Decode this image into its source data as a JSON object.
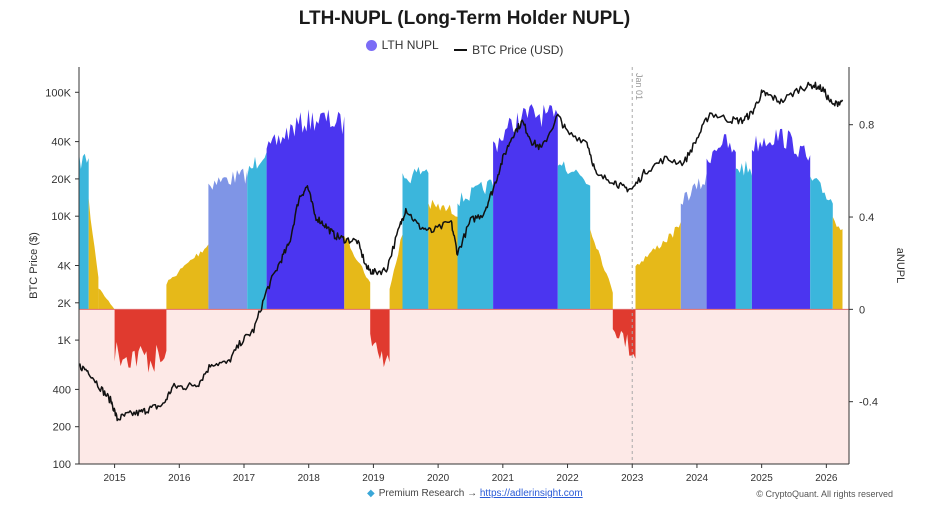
{
  "chart_data": {
    "type": "area",
    "title": "LTH-NUPL (Long-Term Holder NUPL)",
    "legend": [
      {
        "name": "LTH NUPL",
        "color": "#7b6cf6",
        "marker": "dot"
      },
      {
        "name": "BTC Price (USD)",
        "color": "#111111",
        "marker": "line"
      }
    ],
    "legend_placement": "top-center",
    "ylabel_left": "BTC Price ($)",
    "ylabel_right": "aNUPL",
    "left_axis_scale": "log",
    "left_ticks": [
      "100K",
      "40K",
      "20K",
      "10K",
      "4K",
      "2K",
      "1K",
      "400",
      "200",
      "100"
    ],
    "left_tick_values": [
      100000,
      40000,
      20000,
      10000,
      4000,
      2000,
      1000,
      400,
      200,
      100
    ],
    "ylim_left": [
      100,
      160000
    ],
    "right_ticks": [
      "0.8",
      "0.4",
      "0",
      "-0.4"
    ],
    "right_tick_values": [
      0.8,
      0.4,
      0,
      -0.4
    ],
    "ylim_right": [
      -0.67,
      1.05
    ],
    "x_ticks": [
      "2015",
      "2016",
      "2017",
      "2018",
      "2019",
      "2020",
      "2021",
      "2022",
      "2023",
      "2024",
      "2025",
      "2026"
    ],
    "x_tick_values": [
      2015,
      2016,
      2017,
      2018,
      2019,
      2020,
      2021,
      2022,
      2023,
      2024,
      2025,
      2026
    ],
    "xlim": [
      2014.45,
      2026.35
    ],
    "annotation": {
      "label": "Jan 01",
      "x": 2023.0
    },
    "zone_colors": {
      "capitulation": "#e03a2f",
      "hope_fear": "#e6b919",
      "optimism": "#3bb6dc",
      "belief": "#7f95e6",
      "euphoria": "#4b35f0"
    },
    "negative_zone_fill": "#fde9e7",
    "series": [
      {
        "name": "LTH NUPL",
        "segments": [
          {
            "zone": "optimism",
            "x": [
              2014.45,
              2014.6
            ],
            "y": [
              0.68,
              0.7
            ]
          },
          {
            "zone": "hope_fear",
            "x": [
              2014.6,
              2014.75
            ],
            "y": [
              0.5,
              0.15
            ]
          },
          {
            "zone": "hope_fear",
            "x": [
              2014.75,
              2015.0
            ],
            "y": [
              0.1,
              0.0
            ]
          },
          {
            "zone": "capitulation",
            "x": [
              2015.0,
              2015.8
            ],
            "y": [
              -0.25,
              -0.3
            ]
          },
          {
            "zone": "hope_fear",
            "x": [
              2015.8,
              2016.45
            ],
            "y": [
              0.12,
              0.3
            ]
          },
          {
            "zone": "belief",
            "x": [
              2016.45,
              2017.05
            ],
            "y": [
              0.58,
              0.62
            ]
          },
          {
            "zone": "optimism",
            "x": [
              2017.05,
              2017.35
            ],
            "y": [
              0.62,
              0.75
            ]
          },
          {
            "zone": "euphoria",
            "x": [
              2017.35,
              2018.55
            ],
            "y": [
              0.72,
              0.85
            ]
          },
          {
            "zone": "hope_fear",
            "x": [
              2018.55,
              2018.95
            ],
            "y": [
              0.35,
              0.12
            ]
          },
          {
            "zone": "capitulation",
            "x": [
              2018.95,
              2019.25
            ],
            "y": [
              -0.15,
              -0.35
            ]
          },
          {
            "zone": "hope_fear",
            "x": [
              2019.25,
              2019.45
            ],
            "y": [
              0.1,
              0.35
            ]
          },
          {
            "zone": "optimism",
            "x": [
              2019.45,
              2019.85
            ],
            "y": [
              0.6,
              0.65
            ]
          },
          {
            "zone": "hope_fear",
            "x": [
              2019.85,
              2020.3
            ],
            "y": [
              0.48,
              0.45
            ]
          },
          {
            "zone": "optimism",
            "x": [
              2020.3,
              2020.85
            ],
            "y": [
              0.5,
              0.58
            ]
          },
          {
            "zone": "euphoria",
            "x": [
              2020.85,
              2021.85
            ],
            "y": [
              0.75,
              0.87
            ]
          },
          {
            "zone": "optimism",
            "x": [
              2021.85,
              2022.35
            ],
            "y": [
              0.7,
              0.58
            ]
          },
          {
            "zone": "hope_fear",
            "x": [
              2022.35,
              2022.7
            ],
            "y": [
              0.38,
              0.08
            ]
          },
          {
            "zone": "capitulation",
            "x": [
              2022.7,
              2023.05
            ],
            "y": [
              -0.1,
              -0.25
            ]
          },
          {
            "zone": "hope_fear",
            "x": [
              2023.05,
              2023.75
            ],
            "y": [
              0.2,
              0.38
            ]
          },
          {
            "zone": "belief",
            "x": [
              2023.75,
              2024.15
            ],
            "y": [
              0.5,
              0.6
            ]
          },
          {
            "zone": "euphoria",
            "x": [
              2024.15,
              2024.6
            ],
            "y": [
              0.68,
              0.7
            ]
          },
          {
            "zone": "optimism",
            "x": [
              2024.6,
              2024.85
            ],
            "y": [
              0.66,
              0.64
            ]
          },
          {
            "zone": "euphoria",
            "x": [
              2024.85,
              2025.75
            ],
            "y": [
              0.75,
              0.68
            ]
          },
          {
            "zone": "optimism",
            "x": [
              2025.75,
              2026.1
            ],
            "y": [
              0.6,
              0.5
            ]
          },
          {
            "zone": "hope_fear",
            "x": [
              2026.1,
              2026.25
            ],
            "y": [
              0.42,
              0.38
            ]
          }
        ]
      },
      {
        "name": "BTC Price (USD)",
        "x": [
          2014.45,
          2014.6,
          2014.8,
          2014.95,
          2015.04,
          2015.2,
          2015.4,
          2015.55,
          2015.75,
          2015.9,
          2016.1,
          2016.3,
          2016.5,
          2016.75,
          2016.95,
          2017.15,
          2017.35,
          2017.55,
          2017.7,
          2017.85,
          2017.98,
          2018.1,
          2018.25,
          2018.4,
          2018.55,
          2018.75,
          2018.9,
          2019.0,
          2019.2,
          2019.4,
          2019.5,
          2019.7,
          2019.9,
          2020.2,
          2020.3,
          2020.5,
          2020.7,
          2020.85,
          2021.0,
          2021.15,
          2021.3,
          2021.45,
          2021.6,
          2021.85,
          2022.0,
          2022.3,
          2022.45,
          2022.7,
          2022.85,
          2023.0,
          2023.2,
          2023.5,
          2023.8,
          2024.0,
          2024.2,
          2024.5,
          2024.7,
          2024.85,
          2025.0,
          2025.1,
          2025.3,
          2025.6,
          2025.8,
          2025.95,
          2026.1,
          2026.25
        ],
        "y": [
          620,
          560,
          400,
          320,
          230,
          250,
          260,
          280,
          300,
          420,
          420,
          450,
          650,
          650,
          960,
          1200,
          2500,
          4200,
          6000,
          14000,
          17500,
          10000,
          8500,
          7000,
          6500,
          6300,
          3800,
          3500,
          3700,
          8000,
          11500,
          8300,
          7500,
          9000,
          5000,
          9200,
          10500,
          16500,
          29000,
          45000,
          58000,
          40000,
          35000,
          65000,
          47000,
          40000,
          21000,
          19500,
          17000,
          16500,
          23000,
          29000,
          27000,
          42000,
          68000,
          60000,
          59000,
          68000,
          98000,
          95000,
          84000,
          108000,
          115000,
          105000,
          78000,
          87000
        ]
      }
    ]
  },
  "footer": {
    "promo_text": "Premium Research →",
    "promo_link": "https://adlerinsight.com",
    "copyright": "© CryptoQuant. All rights reserved"
  }
}
